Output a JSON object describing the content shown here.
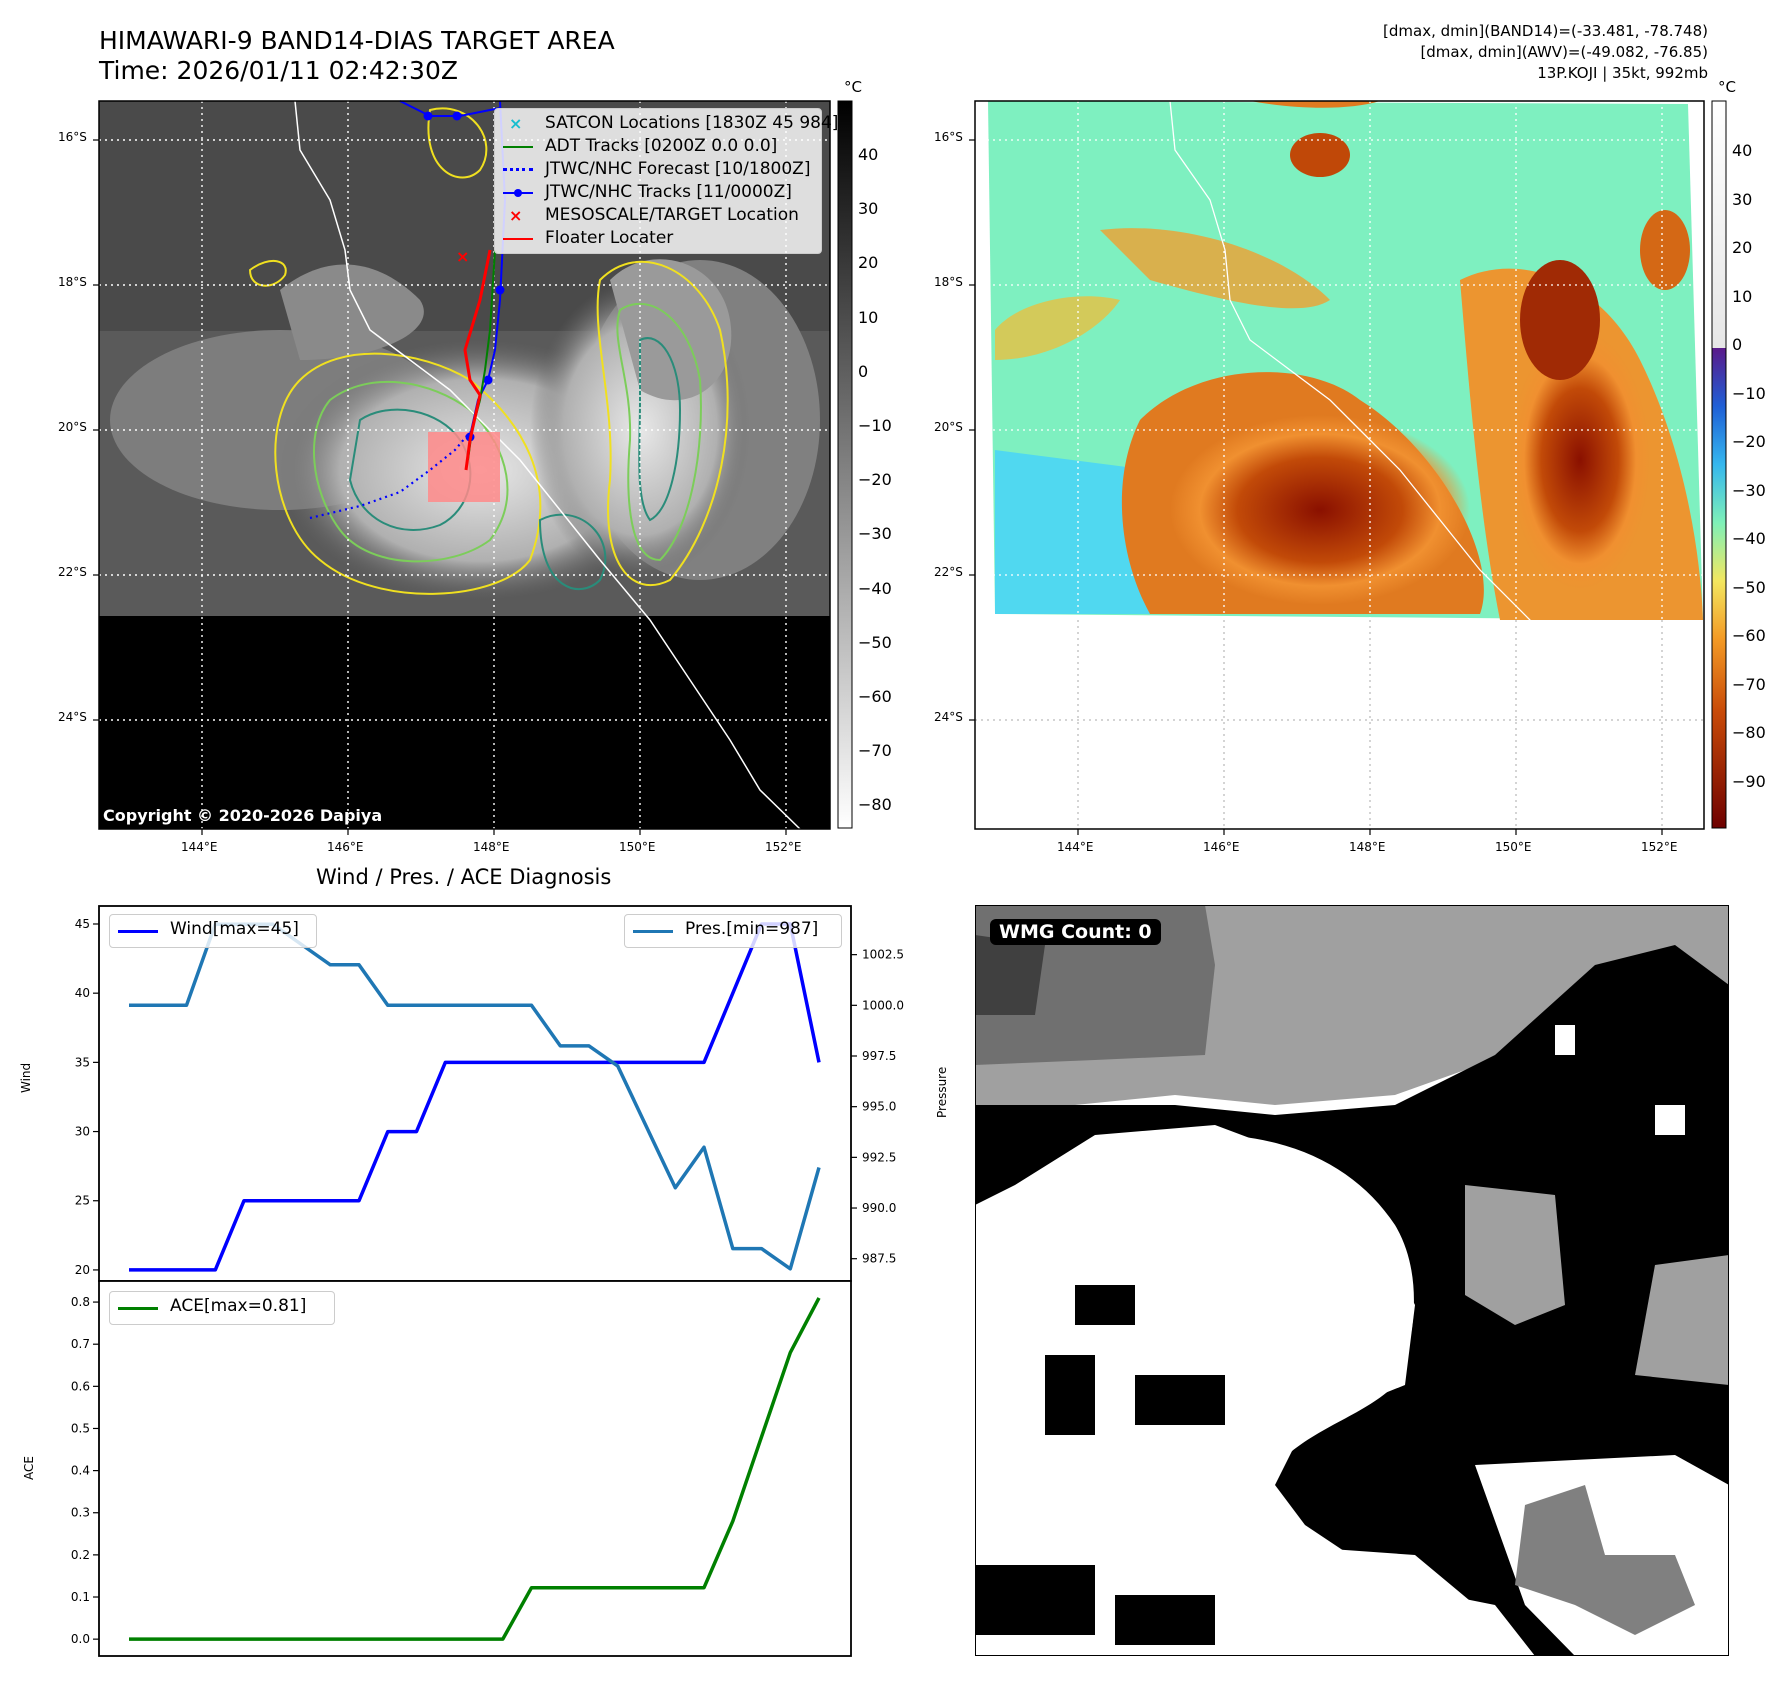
{
  "header": {
    "title_line1": "HIMAWARI-9 BAND14-DIAS TARGET AREA",
    "title_line2": "Time: 2026/01/11 02:42:30Z",
    "info_line1": "[dmax, dmin](BAND14)=(-33.481, -78.748)",
    "info_line2": "[dmax, dmin](AWV)=(-49.082, -76.85)",
    "info_line3": "13P.KOJI | 35kt, 992mb"
  },
  "maps": {
    "lat_labels": [
      "16°S",
      "18°S",
      "20°S",
      "22°S",
      "24°S"
    ],
    "lon_labels": [
      "144°E",
      "146°E",
      "148°E",
      "150°E",
      "152°E"
    ],
    "copyright": "Copyright © 2020-2026 Dapiya",
    "unit": "°C",
    "ir_colorbar_ticks": [
      "40",
      "30",
      "20",
      "10",
      "0",
      "−10",
      "−20",
      "−30",
      "−40",
      "−50",
      "−60",
      "−70",
      "−80"
    ],
    "color_colorbar_ticks": [
      "40",
      "30",
      "20",
      "10",
      "0",
      "−10",
      "−20",
      "−30",
      "−40",
      "−50",
      "−60",
      "−70",
      "−80",
      "−90"
    ],
    "colors": {
      "satcon": "#17becf",
      "adt": "#008000",
      "jtwc_forecast": "#0000ff",
      "jtwc_track": "#0000ff",
      "mesoscale": "#ff0000",
      "floater": "#ff0000"
    },
    "legend": [
      {
        "label": "SATCON Locations [1830Z 45 984]",
        "icon": "x-marker-icon"
      },
      {
        "label": "ADT Tracks [0200Z 0.0 0.0]",
        "icon": "line-icon"
      },
      {
        "label": "JTWC/NHC Forecast [10/1800Z]",
        "icon": "dotted-line-icon"
      },
      {
        "label": "JTWC/NHC Tracks [11/0000Z]",
        "icon": "line-dot-icon"
      },
      {
        "label": "MESOSCALE/TARGET Location",
        "icon": "x-marker-icon"
      },
      {
        "label": "Floater Locater",
        "icon": "line-icon"
      }
    ],
    "wmg_label": "WMG Count: 0"
  },
  "chart_data": [
    {
      "type": "line",
      "title": "Wind / Pres. / ACE Diagnosis",
      "ylabel": "Wind",
      "y2label": "Pressure",
      "x": [
        0,
        1,
        2,
        3,
        4,
        5,
        6,
        7,
        8,
        9,
        10,
        11,
        12,
        13,
        14,
        15,
        16,
        17,
        18,
        19,
        20,
        21,
        22,
        23,
        24
      ],
      "ylim": [
        19.2,
        46.3
      ],
      "y_ticks": [
        "45",
        "40",
        "35",
        "30",
        "25",
        "20"
      ],
      "y2lim": [
        986.4,
        1004.9
      ],
      "y2_ticks": [
        "1002.5",
        "1000.0",
        "997.5",
        "995.0",
        "992.5",
        "990.0",
        "987.5"
      ],
      "series": [
        {
          "name": "Wind[max=45]",
          "axis": "left",
          "color": "#0000ff",
          "values": [
            20,
            20,
            20,
            20,
            25,
            25,
            25,
            25,
            25,
            30,
            30,
            35,
            35,
            35,
            35,
            35,
            35,
            35,
            35,
            35,
            35,
            40,
            45,
            45,
            35
          ]
        },
        {
          "name": "Pres.[min=987]",
          "axis": "right",
          "color": "#1f77b4",
          "values": [
            1000,
            1000,
            1000,
            1004,
            1004,
            1004,
            1003,
            1002,
            1002,
            1000,
            1000,
            1000,
            1000,
            1000,
            1000,
            998,
            998,
            997,
            994,
            991,
            993,
            988,
            988,
            987,
            992
          ]
        }
      ]
    },
    {
      "type": "line",
      "ylabel": "ACE",
      "x": [
        0,
        1,
        2,
        3,
        4,
        5,
        6,
        7,
        8,
        9,
        10,
        11,
        12,
        13,
        14,
        15,
        16,
        17,
        18,
        19,
        20,
        21,
        22,
        23,
        24
      ],
      "ylim": [
        -0.04,
        0.85
      ],
      "y_ticks": [
        "0.8",
        "0.7",
        "0.6",
        "0.5",
        "0.4",
        "0.3",
        "0.2",
        "0.1",
        "0.0"
      ],
      "series": [
        {
          "name": "ACE[max=0.81]",
          "color": "#008000",
          "values": [
            0,
            0,
            0,
            0,
            0,
            0,
            0,
            0,
            0,
            0,
            0,
            0,
            0,
            0,
            0.122,
            0.122,
            0.122,
            0.122,
            0.122,
            0.122,
            0.122,
            0.28,
            0.48,
            0.68,
            0.81
          ]
        }
      ]
    }
  ]
}
